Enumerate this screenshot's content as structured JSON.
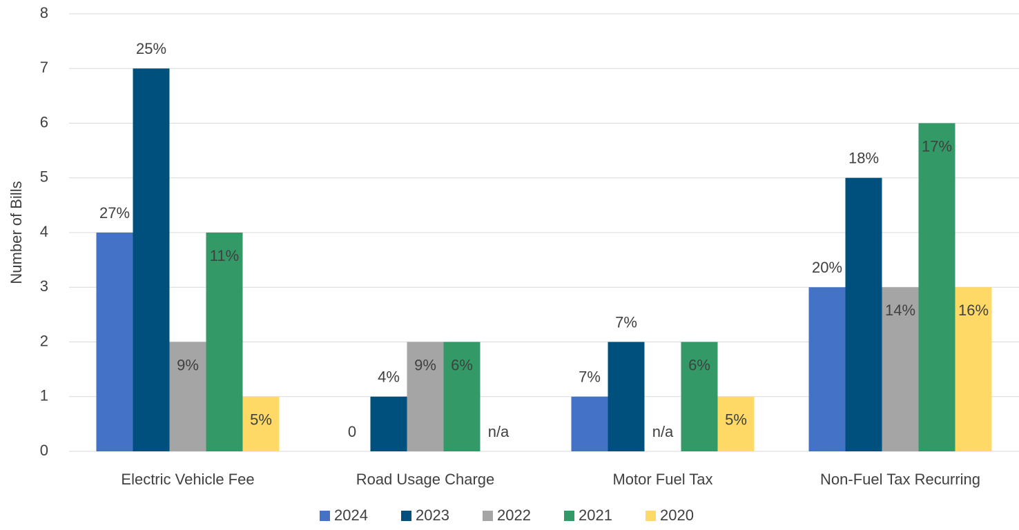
{
  "chart_data": {
    "type": "bar",
    "y_label": "Number of Bills",
    "categories": [
      "Electric Vehicle Fee",
      "Road Usage Charge",
      "Motor Fuel Tax",
      "Non-Fuel Tax Recurring"
    ],
    "series": [
      {
        "name": "2024",
        "color": "#4472c4",
        "values": [
          4,
          0,
          1,
          3
        ],
        "labels": [
          "27%",
          "0",
          "7%",
          "20%"
        ],
        "label_position": "outside"
      },
      {
        "name": "2023",
        "color": "#00507d",
        "values": [
          7,
          1,
          2,
          5
        ],
        "labels": [
          "25%",
          "4%",
          "7%",
          "18%"
        ],
        "label_position": "outside"
      },
      {
        "name": "2022",
        "color": "#a5a5a5",
        "values": [
          2,
          2,
          null,
          3
        ],
        "labels": [
          "9%",
          "9%",
          "n/a",
          "14%"
        ],
        "label_position": "inside"
      },
      {
        "name": "2021",
        "color": "#339966",
        "values": [
          4,
          2,
          2,
          6
        ],
        "labels": [
          "11%",
          "6%",
          "6%",
          "17%"
        ],
        "label_position": "inside"
      },
      {
        "name": "2020",
        "color": "#ffd966",
        "values": [
          1,
          null,
          1,
          3
        ],
        "labels": [
          "5%",
          "n/a",
          "5%",
          "16%"
        ],
        "label_position": "inside"
      }
    ],
    "ylim": [
      0,
      8
    ],
    "yticks": [
      0,
      1,
      2,
      3,
      4,
      5,
      6,
      7,
      8
    ],
    "grid": true,
    "legend": "bottom"
  }
}
